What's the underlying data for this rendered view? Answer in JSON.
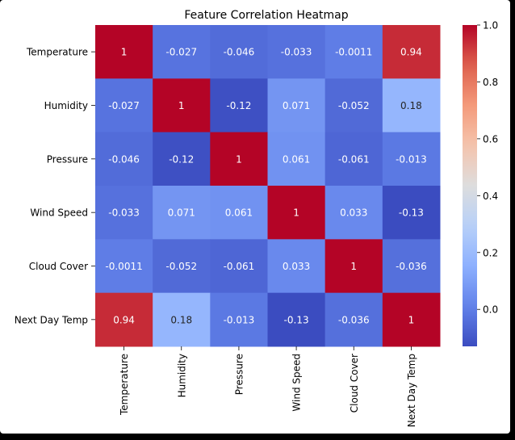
{
  "chart_data": {
    "type": "heatmap",
    "title": "Feature Correlation Heatmap",
    "rows": [
      "Temperature",
      "Humidity",
      "Pressure",
      "Wind Speed",
      "Cloud Cover",
      "Next Day Temp"
    ],
    "columns": [
      "Temperature",
      "Humidity",
      "Pressure",
      "Wind Speed",
      "Cloud Cover",
      "Next Day Temp"
    ],
    "values": [
      [
        1,
        -0.027,
        -0.046,
        -0.033,
        -0.0011,
        0.94
      ],
      [
        -0.027,
        1,
        -0.12,
        0.071,
        -0.052,
        0.18
      ],
      [
        -0.046,
        -0.12,
        1,
        0.061,
        -0.061,
        -0.013
      ],
      [
        -0.033,
        0.071,
        0.061,
        1,
        0.033,
        -0.13
      ],
      [
        -0.0011,
        -0.052,
        -0.061,
        0.033,
        1,
        -0.036
      ],
      [
        0.94,
        0.18,
        -0.013,
        -0.13,
        -0.036,
        1
      ]
    ],
    "annotations": [
      [
        "1",
        "-0.027",
        "-0.046",
        "-0.033",
        "-0.0011",
        "0.94"
      ],
      [
        "-0.027",
        "1",
        "-0.12",
        "0.071",
        "-0.052",
        "0.18"
      ],
      [
        "-0.046",
        "-0.12",
        "1",
        "0.061",
        "-0.061",
        "-0.013"
      ],
      [
        "-0.033",
        "0.071",
        "0.061",
        "1",
        "0.033",
        "-0.13"
      ],
      [
        "-0.0011",
        "-0.052",
        "-0.061",
        "0.033",
        "1",
        "-0.036"
      ],
      [
        "0.94",
        "0.18",
        "-0.013",
        "-0.13",
        "-0.036",
        "1"
      ]
    ],
    "colormap": "coolwarm",
    "vmin": -0.13,
    "vmax": 1.0,
    "colorbar_ticks": [
      1.0,
      0.8,
      0.6,
      0.4,
      0.2,
      0.0
    ],
    "colorbar_tick_labels": [
      "1.0",
      "0.8",
      "0.6",
      "0.4",
      "0.2",
      "0.0"
    ],
    "grid": false
  }
}
